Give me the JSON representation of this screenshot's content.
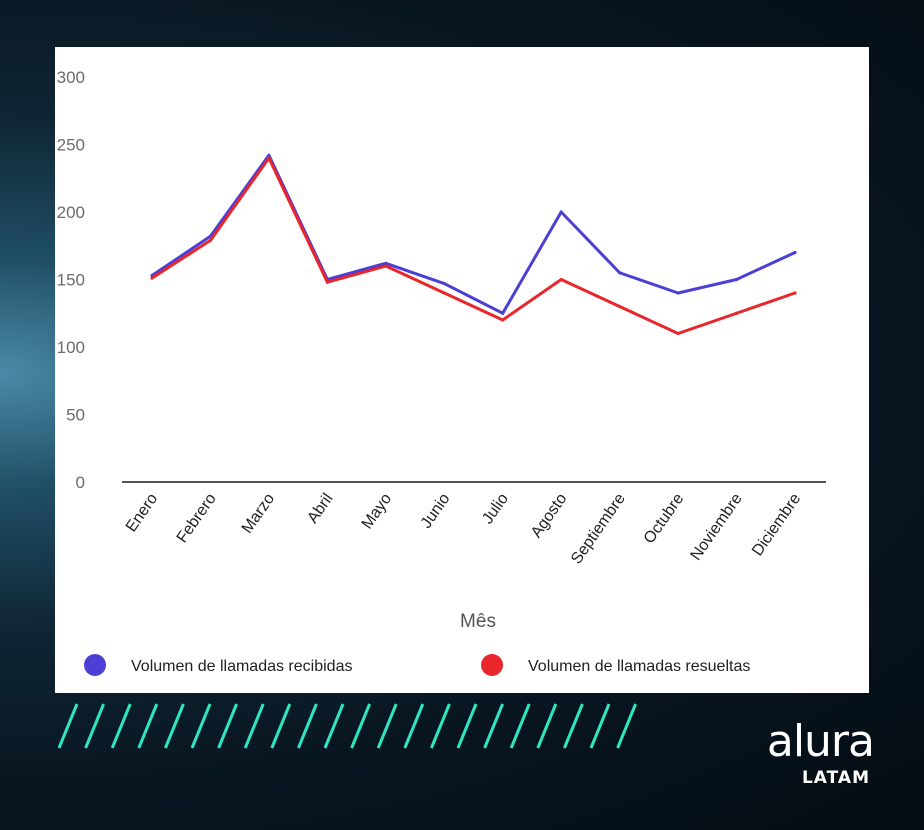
{
  "colors": {
    "series_received": "#4b3fd6",
    "series_resolved": "#e8262b",
    "stripes": "#2ee6c0",
    "panel_background": "#ffffff"
  },
  "brand": {
    "name": "alura",
    "sub": "LATAM"
  },
  "chart_data": {
    "type": "line",
    "title": "",
    "xlabel": "Mês",
    "ylabel": "",
    "ylim": [
      0,
      300
    ],
    "yticks": [
      0,
      50,
      100,
      150,
      200,
      250,
      300
    ],
    "grid": false,
    "legend_position": "bottom",
    "categories": [
      "Enero",
      "Febrero",
      "Marzo",
      "Abril",
      "Mayo",
      "Junio",
      "Julio",
      "Agosto",
      "Septiembre",
      "Octubre",
      "Noviembre",
      "Diciembre"
    ],
    "series": [
      {
        "name": "Volumen de llamadas recibidas",
        "color": "#4b3fd6",
        "values": [
          153,
          182,
          242,
          150,
          162,
          147,
          125,
          200,
          155,
          140,
          150,
          170
        ]
      },
      {
        "name": "Volumen de llamadas resueltas",
        "color": "#e8262b",
        "values": [
          151,
          179,
          240,
          148,
          160,
          140,
          120,
          150,
          130,
          110,
          125,
          140
        ]
      }
    ]
  }
}
